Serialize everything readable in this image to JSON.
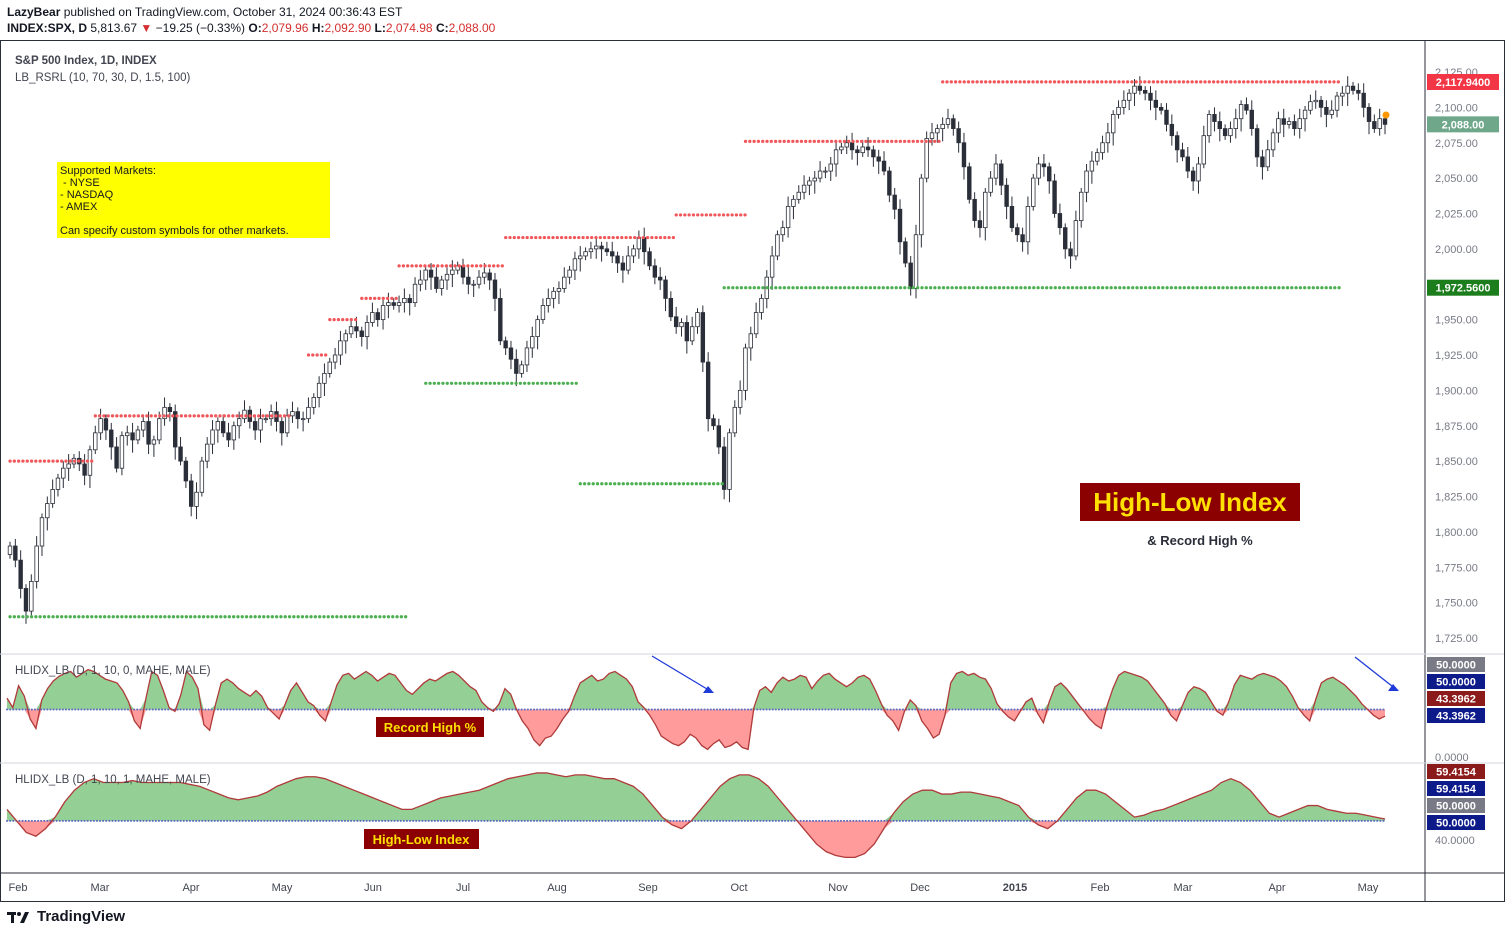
{
  "header": {
    "line1_user": "LazyBear",
    "line1_rest": " published on TradingView.com, October 31, 2024 00:36:43 EST",
    "symbol": "INDEX:SPX, D",
    "price": "5,813.67",
    "change": "−19.25 (−0.33%)",
    "o_label": "O:",
    "o": "2,079.96",
    "h_label": "H:",
    "h": "2,092.90",
    "l_label": "L:",
    "l": "2,074.98",
    "c_label": "C:",
    "c": "2,088.00"
  },
  "legend": {
    "main_title": "S&P 500 Index, 1D, INDEX",
    "indicator": "LB_RSRL (10, 70, 30, D, 1.5, 100)",
    "pane2": "HLIDX_LB (D, 1, 10, 0, MAHE, MALE)",
    "pane3": "HLIDX_LB (D, 1, 10, 1, MAHE, MALE)"
  },
  "note": {
    "lines": [
      "Supported Markets:",
      " - NYSE",
      " - NASDAQ",
      " - AMEX",
      "",
      "Can specify custom symbols for other markets."
    ]
  },
  "annotations": {
    "title": "High-Low Index",
    "subtitle": "& Record High %",
    "pane2_label": "Record High %",
    "pane3_label": "High-Low Index"
  },
  "footer": {
    "brand": "TradingView"
  },
  "colors": {
    "up": "#26a69a",
    "down": "#ef5350",
    "candle": "#2a2e39",
    "resistance": "#f0575a",
    "support": "#4caf50",
    "area_up": "#81c784",
    "area_down": "#ff8a8a",
    "line": "#b03a3a",
    "banner_bg": "#8b0000",
    "banner_text": "#ffe000",
    "note_bg": "#ffff00"
  },
  "chart_data": {
    "type": "candlestick",
    "x_ticks": [
      "Feb",
      "Mar",
      "Apr",
      "May",
      "Jun",
      "Jul",
      "Aug",
      "Sep",
      "Oct",
      "Nov",
      "Dec",
      "2015",
      "Feb",
      "Mar",
      "Apr",
      "May"
    ],
    "y_ticks": [
      "2,125.00",
      "2,100.00",
      "2,075.00",
      "2,050.00",
      "2,025.00",
      "2,000.00",
      "1,975.00",
      "1,950.00",
      "1,925.00",
      "1,900.00",
      "1,875.00",
      "1,850.00",
      "1,825.00",
      "1,800.00",
      "1,775.00",
      "1,750.00",
      "1,725.00"
    ],
    "ylim": [
      1712,
      2142
    ],
    "price_labels": [
      {
        "text": "2,117.9400",
        "value": 2117.94,
        "color": "#f23645"
      },
      {
        "text": "2,088.00",
        "value": 2088.0,
        "color": "#6fa78b"
      },
      {
        "text": "1,972.5600",
        "value": 1972.56,
        "color": "#1b7d1b"
      }
    ],
    "closes": [
      1790,
      1780,
      1760,
      1744,
      1765,
      1790,
      1810,
      1820,
      1830,
      1838,
      1845,
      1848,
      1852,
      1848,
      1840,
      1858,
      1870,
      1880,
      1872,
      1860,
      1845,
      1868,
      1870,
      1865,
      1872,
      1878,
      1862,
      1865,
      1880,
      1888,
      1885,
      1860,
      1850,
      1836,
      1818,
      1828,
      1850,
      1862,
      1872,
      1878,
      1870,
      1865,
      1875,
      1880,
      1886,
      1878,
      1872,
      1880,
      1880,
      1885,
      1878,
      1870,
      1882,
      1885,
      1880,
      1880,
      1888,
      1895,
      1905,
      1912,
      1920,
      1925,
      1935,
      1940,
      1945,
      1942,
      1938,
      1948,
      1955,
      1950,
      1960,
      1962,
      1960,
      1962,
      1965,
      1962,
      1975,
      1978,
      1985,
      1980,
      1972,
      1978,
      1982,
      1985,
      1988,
      1980,
      1975,
      1975,
      1980,
      1983,
      1978,
      1965,
      1935,
      1930,
      1922,
      1912,
      1918,
      1930,
      1938,
      1950,
      1960,
      1965,
      1970,
      1972,
      1980,
      1985,
      1993,
      1995,
      1998,
      2000,
      2002,
      2000,
      1998,
      1995,
      1990,
      1985,
      1995,
      2000,
      2008,
      1998,
      1988,
      1980,
      1978,
      1965,
      1952,
      1945,
      1948,
      1935,
      1945,
      1955,
      1920,
      1880,
      1875,
      1860,
      1830,
      1870,
      1888,
      1900,
      1930,
      1940,
      1955,
      1965,
      1980,
      1995,
      2010,
      2015,
      2030,
      2035,
      2040,
      2045,
      2048,
      2050,
      2055,
      2055,
      2060,
      2070,
      2072,
      2075,
      2070,
      2068,
      2072,
      2070,
      2065,
      2062,
      2055,
      2038,
      2028,
      2005,
      1990,
      1972,
      2010,
      2050,
      2078,
      2082,
      2085,
      2088,
      2092,
      2085,
      2075,
      2058,
      2035,
      2020,
      2015,
      2040,
      2050,
      2060,
      2045,
      2030,
      2015,
      2010,
      2005,
      2030,
      2050,
      2060,
      2058,
      2048,
      2025,
      2015,
      2000,
      1995,
      2020,
      2040,
      2055,
      2062,
      2068,
      2075,
      2082,
      2095,
      2100,
      2105,
      2110,
      2115,
      2112,
      2110,
      2105,
      2100,
      2098,
      2088,
      2080,
      2070,
      2065,
      2055,
      2048,
      2060,
      2080,
      2095,
      2090,
      2085,
      2080,
      2085,
      2092,
      2102,
      2098,
      2085,
      2065,
      2058,
      2070,
      2082,
      2092,
      2088,
      2090,
      2085,
      2092,
      2098,
      2104,
      2105,
      2100,
      2095,
      2098,
      2108,
      2110,
      2115,
      2112,
      2110,
      2100,
      2090,
      2085,
      2092,
      2088
    ],
    "resistance_levels": [
      {
        "from": 0,
        "to": 16,
        "value": 1850
      },
      {
        "from": 16,
        "to": 53,
        "value": 1882
      },
      {
        "from": 56,
        "to": 60,
        "value": 1925
      },
      {
        "from": 60,
        "to": 65,
        "value": 1950
      },
      {
        "from": 66,
        "to": 73,
        "value": 1965
      },
      {
        "from": 73,
        "to": 93,
        "value": 1988
      },
      {
        "from": 93,
        "to": 125,
        "value": 2008
      },
      {
        "from": 125,
        "to": 138,
        "value": 2024
      },
      {
        "from": 138,
        "to": 175,
        "value": 2076
      },
      {
        "from": 175,
        "to": 250,
        "value": 2118
      }
    ],
    "support_levels": [
      {
        "from": 0,
        "to": 75,
        "value": 1740
      },
      {
        "from": 78,
        "to": 107,
        "value": 1905
      },
      {
        "from": 107,
        "to": 134,
        "value": 1834
      },
      {
        "from": 134,
        "to": 250,
        "value": 1972.56
      }
    ],
    "pane2": {
      "name": "Record High %",
      "ylim": [
        0,
        100
      ],
      "midline": 50,
      "y_ticks": [
        "0.0000"
      ],
      "labels": [
        {
          "text": "50.0000",
          "bg": "#787b86"
        },
        {
          "text": "50.0000",
          "bg": "#0d1a8a"
        },
        {
          "text": "43.3962",
          "bg": "#8b1a1a"
        },
        {
          "text": "43.3962",
          "bg": "#0d1a8a"
        }
      ],
      "values": [
        62,
        52,
        75,
        64,
        40,
        30,
        60,
        72,
        80,
        85,
        88,
        90,
        84,
        88,
        92,
        90,
        86,
        82,
        80,
        78,
        70,
        58,
        38,
        30,
        62,
        90,
        86,
        70,
        52,
        48,
        65,
        90,
        84,
        72,
        34,
        28,
        55,
        78,
        82,
        78,
        72,
        68,
        64,
        70,
        64,
        52,
        46,
        40,
        55,
        70,
        78,
        68,
        58,
        54,
        44,
        38,
        58,
        76,
        86,
        88,
        82,
        86,
        90,
        86,
        80,
        84,
        88,
        86,
        78,
        70,
        66,
        72,
        78,
        82,
        80,
        84,
        88,
        90,
        86,
        80,
        74,
        70,
        58,
        52,
        48,
        56,
        72,
        66,
        50,
        38,
        30,
        18,
        12,
        20,
        22,
        30,
        40,
        48,
        64,
        78,
        82,
        86,
        80,
        82,
        88,
        90,
        86,
        82,
        74,
        58,
        52,
        44,
        34,
        22,
        18,
        14,
        12,
        16,
        24,
        20,
        12,
        8,
        14,
        18,
        10,
        12,
        16,
        10,
        8,
        52,
        70,
        74,
        68,
        78,
        84,
        80,
        82,
        86,
        84,
        72,
        80,
        86,
        88,
        82,
        78,
        74,
        78,
        84,
        86,
        82,
        70,
        56,
        44,
        38,
        28,
        48,
        60,
        54,
        38,
        30,
        20,
        24,
        44,
        78,
        88,
        90,
        86,
        88,
        84,
        82,
        72,
        56,
        48,
        42,
        38,
        48,
        58,
        62,
        46,
        36,
        58,
        74,
        78,
        72,
        64,
        56,
        48,
        40,
        34,
        30,
        54,
        72,
        86,
        90,
        88,
        86,
        84,
        80,
        72,
        64,
        56,
        44,
        38,
        54,
        68,
        74,
        72,
        68,
        58,
        48,
        44,
        58,
        76,
        86,
        84,
        82,
        86,
        88,
        86,
        84,
        80,
        74,
        64,
        52,
        44,
        38,
        60,
        78,
        82,
        84,
        80,
        76,
        70,
        64,
        56,
        50,
        44,
        40,
        43
      ]
    },
    "pane3": {
      "name": "High-Low Index",
      "ylim": [
        26,
        76
      ],
      "midline": 50,
      "y_ticks": [
        "40.0000"
      ],
      "labels": [
        {
          "text": "59.4154",
          "bg": "#8b1a1a"
        },
        {
          "text": "59.4154",
          "bg": "#0d1a8a"
        },
        {
          "text": "50.0000",
          "bg": "#787b86"
        },
        {
          "text": "50.0000",
          "bg": "#0d1a8a"
        }
      ],
      "values": [
        56,
        50,
        44,
        42,
        46,
        52,
        60,
        66,
        70,
        72,
        70,
        70,
        70,
        71,
        70,
        70,
        70,
        70,
        70,
        69,
        68,
        66,
        64,
        62,
        61,
        62,
        63,
        65,
        68,
        70,
        72,
        73,
        73,
        72,
        70,
        68,
        66,
        64,
        62,
        60,
        58,
        56,
        56,
        58,
        60,
        62,
        63,
        64,
        65,
        66,
        68,
        70,
        72,
        73,
        74,
        75,
        75,
        74,
        73,
        74,
        74,
        73,
        72,
        72,
        70,
        68,
        64,
        58,
        52,
        48,
        46,
        50,
        56,
        62,
        68,
        72,
        74,
        74,
        72,
        68,
        62,
        56,
        50,
        44,
        38,
        34,
        32,
        31,
        31,
        33,
        38,
        46,
        54,
        60,
        64,
        66,
        66,
        64,
        64,
        65,
        65,
        64,
        63,
        62,
        60,
        58,
        52,
        48,
        46,
        50,
        56,
        62,
        66,
        66,
        64,
        60,
        56,
        52,
        53,
        55,
        56,
        58,
        60,
        62,
        64,
        66,
        70,
        72,
        70,
        66,
        60,
        54,
        52,
        54,
        56,
        58,
        58,
        56,
        55,
        54,
        54,
        53,
        52,
        51
      ]
    }
  }
}
